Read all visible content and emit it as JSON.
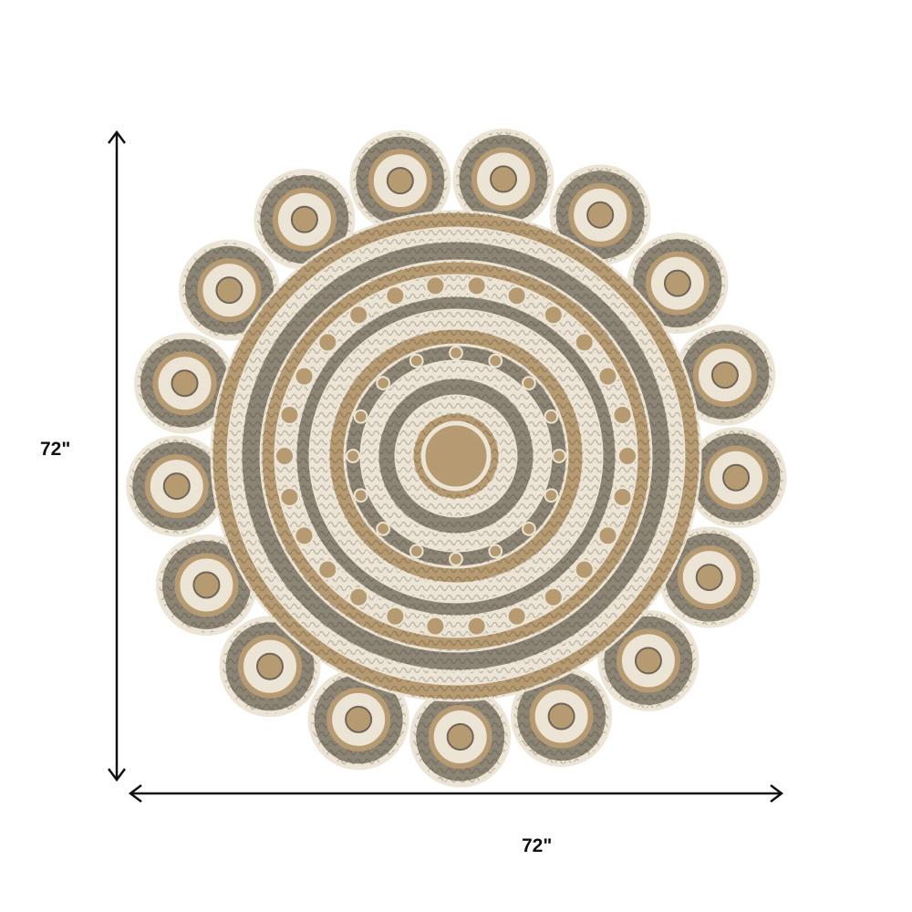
{
  "dimensions": {
    "height_label": "72\"",
    "width_label": "72\""
  },
  "product": {
    "shape": "round scalloped braided jute rug",
    "scallop_count": 17,
    "colors": {
      "jute": "#b59a72",
      "gray": "#8c8474",
      "cream": "#ece4d4",
      "dark": "#6f6658"
    }
  },
  "arrow_color": "#111111"
}
